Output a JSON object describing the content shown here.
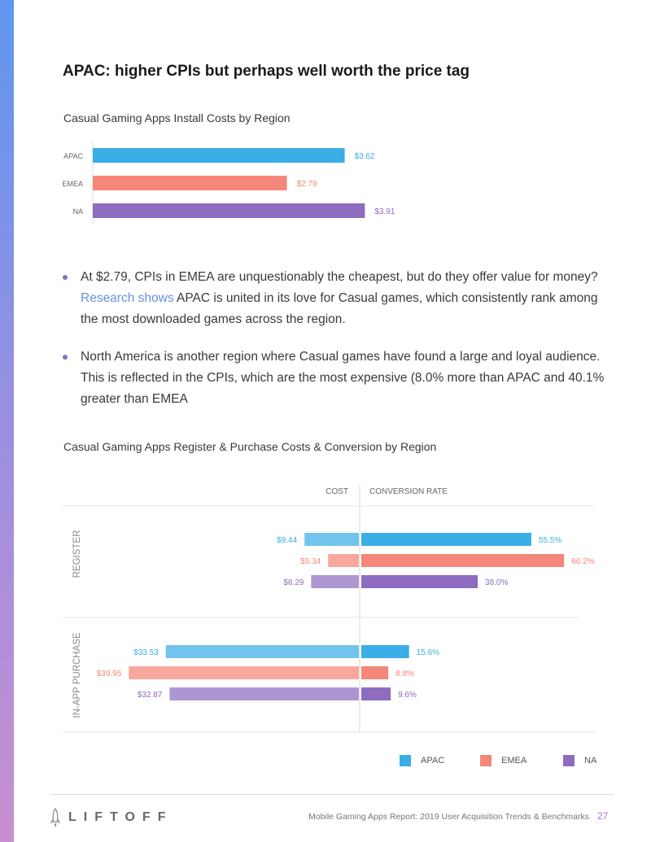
{
  "heading": "APAC: higher CPIs but perhaps well worth the price tag",
  "colors": {
    "apac": "#3aaee6",
    "emea": "#f4877a",
    "na": "#8e6cc0",
    "apac_light": "#72c4ec",
    "emea_light": "#f7a89d",
    "na_light": "#ad97d3",
    "sidebar_top": "#5f97f0",
    "sidebar_bottom": "#c98fd0"
  },
  "bullets": [
    {
      "text_before": "At $2.79, CPIs in EMEA are unquestionably the cheapest, but do they offer value for money? ",
      "link": "Research shows",
      "text_after": " APAC is united in its love for Casual games, which consistently rank among the most downloaded games across the region."
    },
    {
      "text_before": "North America is another region where Casual games have found a large and loyal audience. This is reflected in the CPIs, which are the most expensive (8.0% more than APAC and 40.1% greater than EMEA",
      "link": "",
      "text_after": ""
    }
  ],
  "chart_data": [
    {
      "type": "bar",
      "orientation": "horizontal",
      "title": "Casual Gaming Apps Install Costs by Region",
      "categories": [
        "APAC",
        "EMEA",
        "NA"
      ],
      "values": [
        3.62,
        2.79,
        3.91
      ],
      "labels": [
        "$3.62",
        "$2.79",
        "$3.91"
      ],
      "xlim": [
        0,
        4.35
      ]
    },
    {
      "type": "bar",
      "orientation": "horizontal-diverging",
      "title": "Casual Gaming Apps Register & Purchase Costs & Conversion by Region",
      "header_left": "COST",
      "header_right": "CONVERSION RATE",
      "groups": [
        {
          "name": "REGISTER",
          "rows": [
            {
              "region": "APAC",
              "cost": 9.44,
              "cost_label": "$9.44",
              "rate": 55.5,
              "rate_label": "55.5%"
            },
            {
              "region": "EMEA",
              "cost": 5.34,
              "cost_label": "$5.34",
              "rate": 66.2,
              "rate_label": "66.2%"
            },
            {
              "region": "NA",
              "cost": 8.29,
              "cost_label": "$8.29",
              "rate": 38.0,
              "rate_label": "38.0%"
            }
          ]
        },
        {
          "name": "IN-APP PURCHASE",
          "rows": [
            {
              "region": "APAC",
              "cost": 33.53,
              "cost_label": "$33.53",
              "rate": 15.6,
              "rate_label": "15.6%"
            },
            {
              "region": "EMEA",
              "cost": 39.95,
              "cost_label": "$39.95",
              "rate": 8.8,
              "rate_label": "8.8%"
            },
            {
              "region": "NA",
              "cost": 32.87,
              "cost_label": "$32.87",
              "rate": 9.6,
              "rate_label": "9.6%"
            }
          ]
        }
      ],
      "cost_max": 40.7,
      "rate_max": 70.4,
      "legend": [
        "APAC",
        "EMEA",
        "NA"
      ],
      "legend_placement": "bottom-right"
    }
  ],
  "footer": {
    "logo": "LIFTOFF",
    "report": "Mobile Gaming Apps Report: 2019 User Acquisition Trends & Benchmarks",
    "page": "27"
  }
}
